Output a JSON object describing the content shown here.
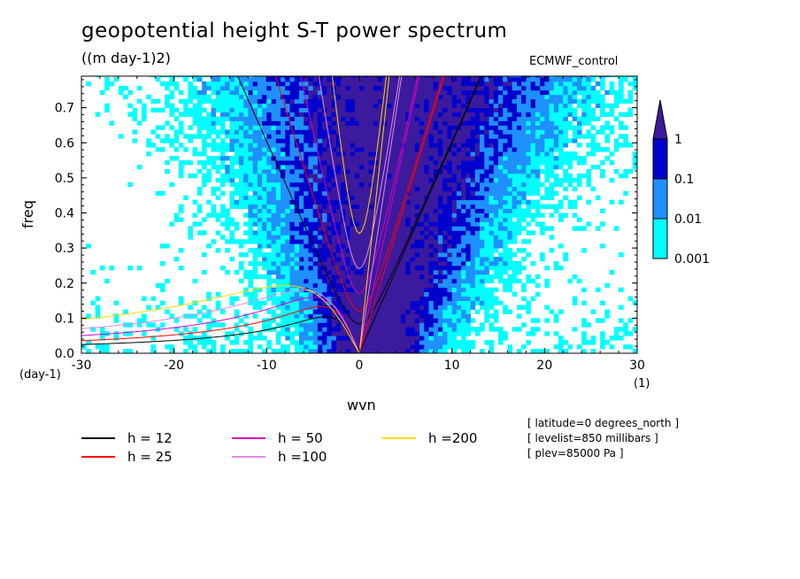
{
  "chart_data": {
    "type": "heatmap",
    "title": "geopotential height S-T power spectrum",
    "units_label": "((m day-1)2)",
    "dataset_label": "ECMWF_control",
    "xlabel": "wvn",
    "ylabel": "freq",
    "x_unit": "(1)",
    "y_unit": "(day-1)",
    "xlim": [
      -30,
      30
    ],
    "ylim": [
      0,
      0.79
    ],
    "x_ticks": [
      -30,
      -20,
      -10,
      0,
      10,
      20,
      30
    ],
    "x_tick_labels": [
      "-30",
      "-20",
      "-10",
      "0",
      "10",
      "20",
      "30"
    ],
    "y_ticks": [
      0,
      0.1,
      0.2,
      0.3,
      0.4,
      0.5,
      0.6,
      0.7
    ],
    "y_tick_labels": [
      "0.0",
      "0.1",
      "0.2",
      "0.3",
      "0.4",
      "0.5",
      "0.6",
      "0.7"
    ],
    "colorbar": {
      "levels": [
        0.001,
        0.01,
        0.1,
        1
      ],
      "labels": [
        "0.001",
        "0.01",
        "0.1",
        "1"
      ],
      "colors": [
        "#00ffff",
        "#1e90ff",
        "#0000cd",
        "#3c1a9e"
      ],
      "extend": "max"
    },
    "series": [
      {
        "name": "h = 12",
        "color": "#000000",
        "equivalent_depth": 12
      },
      {
        "name": "h = 25",
        "color": "#ff0000",
        "equivalent_depth": 25
      },
      {
        "name": "h = 50",
        "color": "#d700c0",
        "equivalent_depth": 50
      },
      {
        "name": "h =100",
        "color": "#e08ce0",
        "equivalent_depth": 100
      },
      {
        "name": "h =200",
        "color": "#ffd700",
        "equivalent_depth": 200
      }
    ],
    "info_lines": [
      "[ latitude=0 degrees_north ]",
      "[ levelist=850 millibars ]",
      "[ plev=85000 Pa ]"
    ]
  }
}
